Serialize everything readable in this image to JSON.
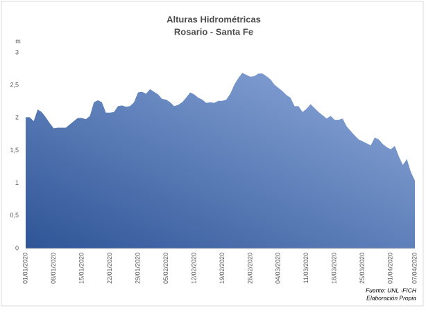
{
  "chart_data": {
    "type": "area",
    "title": "Alturas Hidrométricas",
    "subtitle": "Rosario - Santa Fe",
    "y_unit": "m",
    "source": "Fuente: UNL -FICH",
    "note": "Elaboración Propia",
    "color_dark": "#2f5597",
    "color_light": "#8eaadb",
    "categories": [
      "01/01/2020",
      null,
      null,
      null,
      null,
      null,
      null,
      "08/01/2020",
      null,
      null,
      null,
      null,
      null,
      null,
      "15/01/2020",
      null,
      null,
      null,
      null,
      null,
      null,
      "22/01/2020",
      null,
      null,
      null,
      null,
      null,
      null,
      "29/01/2020",
      null,
      null,
      null,
      null,
      null,
      null,
      "05/02/2020",
      null,
      null,
      null,
      null,
      null,
      null,
      "12/02/2020",
      null,
      null,
      null,
      null,
      null,
      null,
      "19/02/2020",
      null,
      null,
      null,
      null,
      null,
      null,
      "26/02/2020",
      null,
      null,
      null,
      null,
      null,
      null,
      "04/03/2020",
      null,
      null,
      null,
      null,
      null,
      null,
      "11/03/2020",
      null,
      null,
      null,
      null,
      null,
      null,
      "18/03/2020",
      null,
      null,
      null,
      null,
      null,
      null,
      "25/03/2020",
      null,
      null,
      null,
      null,
      null,
      null,
      "01/04/2020",
      null,
      null,
      null,
      null,
      null,
      "07/04/2020"
    ],
    "values": [
      2.01,
      2.01,
      1.95,
      2.13,
      2.09,
      2.01,
      1.92,
      1.84,
      1.85,
      1.85,
      1.85,
      1.9,
      1.95,
      2.0,
      2.0,
      1.98,
      2.03,
      2.24,
      2.27,
      2.24,
      2.08,
      2.08,
      2.09,
      2.18,
      2.19,
      2.17,
      2.18,
      2.24,
      2.39,
      2.4,
      2.37,
      2.44,
      2.4,
      2.36,
      2.29,
      2.28,
      2.24,
      2.18,
      2.2,
      2.24,
      2.31,
      2.39,
      2.36,
      2.31,
      2.28,
      2.23,
      2.24,
      2.23,
      2.26,
      2.26,
      2.28,
      2.37,
      2.51,
      2.61,
      2.69,
      2.66,
      2.63,
      2.64,
      2.68,
      2.68,
      2.64,
      2.59,
      2.51,
      2.46,
      2.41,
      2.35,
      2.31,
      2.18,
      2.18,
      2.09,
      2.14,
      2.21,
      2.15,
      2.09,
      2.04,
      1.99,
      2.03,
      1.97,
      1.97,
      1.99,
      1.87,
      1.8,
      1.73,
      1.67,
      1.64,
      1.61,
      1.58,
      1.7,
      1.67,
      1.6,
      1.55,
      1.52,
      1.57,
      1.41,
      1.28,
      1.37,
      1.17,
      1.04
    ],
    "ylim": [
      0,
      3
    ],
    "yticks": [
      0,
      {
        "value": 0.5,
        "label": "0,5"
      },
      1,
      {
        "value": 1.5,
        "label": "1,5"
      },
      2,
      {
        "value": 2.5,
        "label": "2,5"
      },
      3
    ]
  }
}
